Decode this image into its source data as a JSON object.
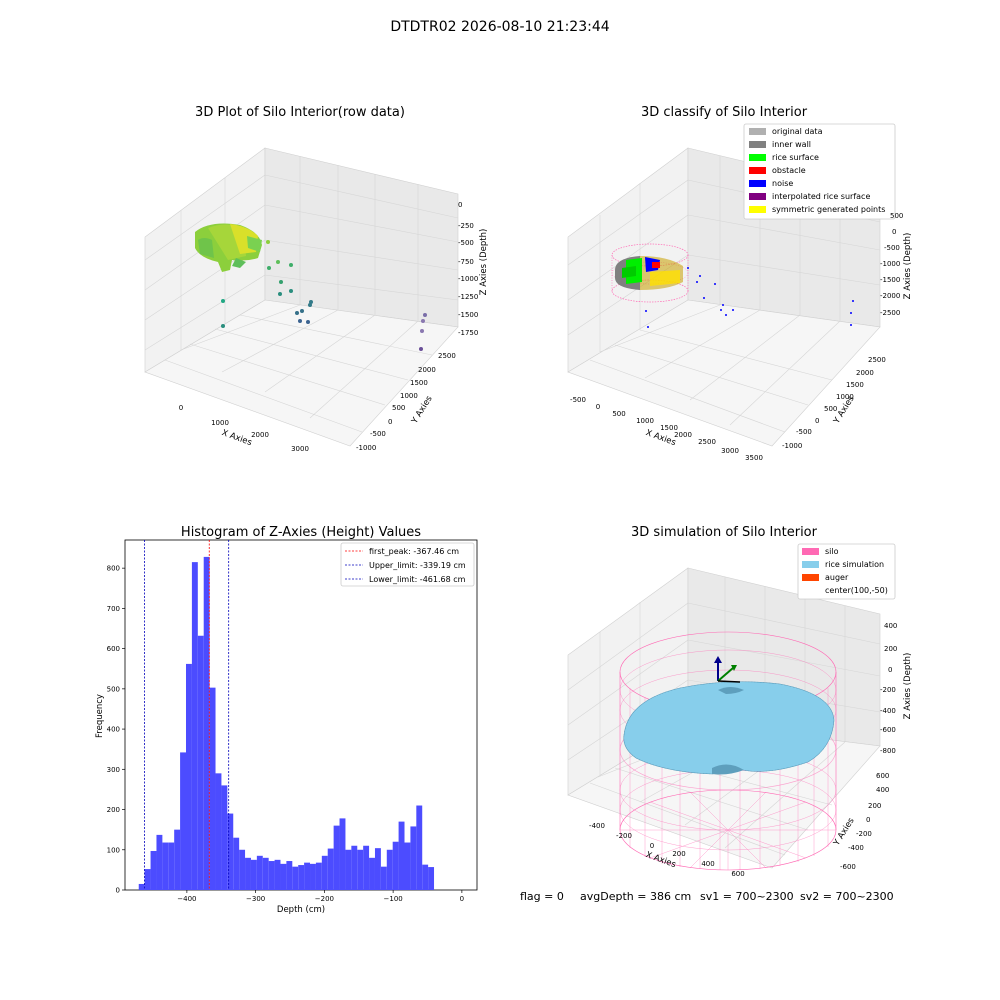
{
  "suptitle": "DTDTR02 2026-08-10 21:23:44",
  "status_line": {
    "flag": "flag = 0",
    "avg_depth": "avgDepth = 386 cm",
    "sv1": "sv1 = 700~2300",
    "sv2": "sv2 = 700~2300"
  },
  "chart_data": [
    {
      "type": "scatter3d",
      "title": "3D Plot of Silo Interior(row data)",
      "xlabel": "X Axies",
      "ylabel": "Y Axies",
      "zlabel": "Z Axies (Depth)",
      "x_ticks": [
        "0",
        "1000",
        "2000",
        "3000"
      ],
      "y_ticks": [
        "-1000",
        "-500",
        "0",
        "500",
        "1000",
        "1500",
        "2000",
        "2500"
      ],
      "z_ticks": [
        "0",
        "-250",
        "-500",
        "-750",
        "-1000",
        "-1250",
        "-1500",
        "-1750"
      ],
      "colormap": [
        "#fde725",
        "#7ad151",
        "#22a884",
        "#2a788e",
        "#414487",
        "#440154"
      ],
      "grid": true,
      "description_points": "dense surface cluster near x≈0, y≈500, z≈-300 to -600 plus sparse scattered outliers"
    },
    {
      "type": "scatter3d",
      "title": "3D classify of Silo Interior",
      "xlabel": "X Axies",
      "ylabel": "Y Axies",
      "zlabel": "Z Axies (Depth)",
      "x_ticks": [
        "-500",
        "0",
        "500",
        "1000",
        "1500",
        "2000",
        "2500",
        "3000",
        "3500"
      ],
      "y_ticks": [
        "-1000",
        "-500",
        "0",
        "500",
        "1000",
        "1500",
        "2000",
        "2500"
      ],
      "z_ticks": [
        "500",
        "0",
        "-500",
        "-1000",
        "-1500",
        "-2000",
        "-2500"
      ],
      "grid": true,
      "legend_position": "top-right",
      "legend": [
        {
          "label": "original data",
          "color": "#b0b0b0"
        },
        {
          "label": "inner wall",
          "color": "#808080"
        },
        {
          "label": "rice surface",
          "color": "#00ff00"
        },
        {
          "label": "obstacle",
          "color": "#ff0000"
        },
        {
          "label": "noise",
          "color": "#0000ff"
        },
        {
          "label": "interpolated rice surface",
          "color": "#800080"
        },
        {
          "label": "symmetric generated points",
          "color": "#ffff00"
        }
      ]
    },
    {
      "type": "bar",
      "title": "Histogram of Z-Axies (Height) Values",
      "xlabel": "Depth (cm)",
      "ylabel": "Frequency",
      "xlim": [
        -490,
        22
      ],
      "ylim": [
        0,
        870
      ],
      "x_ticks": [
        -400,
        -300,
        -200,
        -100,
        0
      ],
      "y_ticks": [
        0,
        100,
        200,
        300,
        400,
        500,
        600,
        700,
        800
      ],
      "bar_color": "#4c4cff",
      "bin_start": -470,
      "bin_width": 8.59,
      "values": [
        15,
        52,
        97,
        137,
        118,
        118,
        150,
        342,
        562,
        815,
        632,
        828,
        503,
        290,
        260,
        190,
        130,
        100,
        80,
        75,
        85,
        80,
        72,
        75,
        65,
        72,
        58,
        62,
        68,
        65,
        68,
        85,
        103,
        160,
        178,
        100,
        110,
        100,
        110,
        80,
        104,
        58,
        100,
        120,
        170,
        118,
        158,
        210,
        63,
        57
      ],
      "vlines": [
        {
          "label": "first_peak: -367.46 cm",
          "x": -367.46,
          "color": "#ff0000"
        },
        {
          "label": "Upper_limit: -339.19 cm",
          "x": -339.19,
          "color": "#0000bb"
        },
        {
          "label": "Lower_limit: -461.68 cm",
          "x": -461.68,
          "color": "#0000bb"
        }
      ],
      "legend_position": "top-right",
      "grid": false
    },
    {
      "type": "surface3d",
      "title": "3D simulation of Silo Interior",
      "xlabel": "X Axies",
      "ylabel": "Y Axies",
      "zlabel": "Z Axies (Depth)",
      "x_ticks": [
        "-400",
        "-200",
        "0",
        "200",
        "400",
        "600"
      ],
      "y_ticks": [
        "-600",
        "-400",
        "-200",
        "0",
        "200",
        "400",
        "600"
      ],
      "z_ticks": [
        "400",
        "200",
        "0",
        "-200",
        "-400",
        "-600",
        "-800"
      ],
      "grid": true,
      "legend_position": "top-right",
      "legend": [
        {
          "label": "silo",
          "color": "#ff69b4"
        },
        {
          "label": "rice simulation",
          "color": "#87ceeb"
        },
        {
          "label": "auger",
          "color": "#ff4500"
        },
        {
          "label": "center(100,-50)",
          "color": "#ffffff"
        }
      ]
    }
  ]
}
